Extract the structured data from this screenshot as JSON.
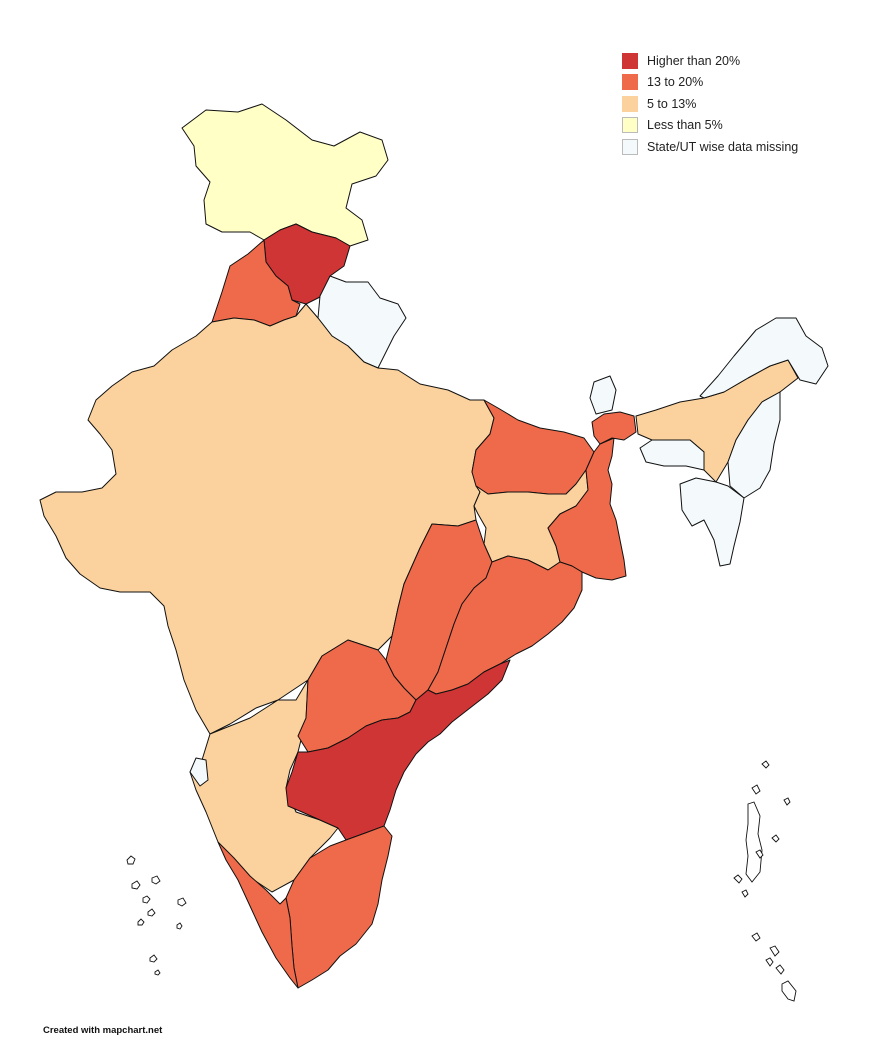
{
  "colors": {
    "higher_than_20": "#d03535",
    "range_13_to_20": "#ef6a4a",
    "range_5_to_13": "#fbd29e",
    "less_than_5": "#ffffc6",
    "missing": "#f4fafc"
  },
  "legend": {
    "items": [
      {
        "key": "higher_than_20",
        "label": "Higher than 20%"
      },
      {
        "key": "range_13_to_20",
        "label": "13 to 20%"
      },
      {
        "key": "range_5_to_13",
        "label": "5 to 13%"
      },
      {
        "key": "less_than_5",
        "label": "Less than 5%"
      },
      {
        "key": "missing",
        "label": "State/UT wise data missing"
      }
    ]
  },
  "credit": "Created with mapchart.net"
}
